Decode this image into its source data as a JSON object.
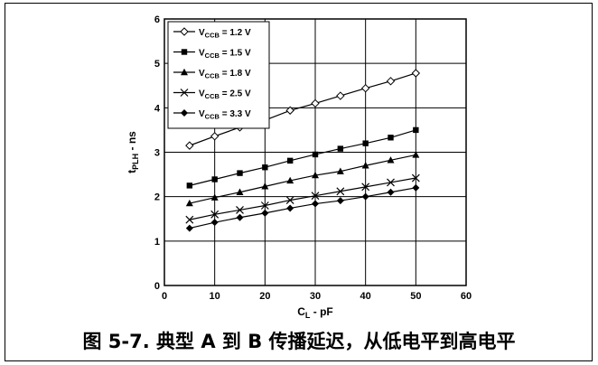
{
  "figure": {
    "caption": "图 5-7. 典型 A 到 B 传播延迟，从低电平到高电平"
  },
  "chart_data": {
    "type": "line",
    "xlabel_main": "C",
    "xlabel_sub": "L",
    "xlabel_rest": " - pF",
    "ylabel_main": "t",
    "ylabel_sub": "PLH",
    "ylabel_rest": " - ns",
    "xlim": [
      0,
      60
    ],
    "ylim": [
      0,
      6
    ],
    "xticks": [
      0,
      10,
      20,
      30,
      40,
      50,
      60
    ],
    "yticks": [
      0,
      1,
      2,
      3,
      4,
      5,
      6
    ],
    "grid": true,
    "legend_position": "top-left",
    "x": [
      5,
      10,
      15,
      20,
      25,
      30,
      35,
      40,
      45,
      50
    ],
    "series": [
      {
        "name": "V",
        "name_sub": "CCB",
        "name_rest": " = 1.2 V",
        "marker": "diamond-open",
        "values": [
          3.15,
          3.36,
          3.56,
          3.72,
          3.94,
          4.1,
          4.27,
          4.44,
          4.6,
          4.78
        ]
      },
      {
        "name": "V",
        "name_sub": "CCB",
        "name_rest": " = 1.5 V",
        "marker": "square",
        "values": [
          2.25,
          2.39,
          2.53,
          2.66,
          2.81,
          2.95,
          3.08,
          3.2,
          3.33,
          3.5
        ]
      },
      {
        "name": "V",
        "name_sub": "CCB",
        "name_rest": " = 1.8 V",
        "marker": "triangle",
        "values": [
          1.85,
          1.98,
          2.1,
          2.23,
          2.36,
          2.48,
          2.57,
          2.7,
          2.82,
          2.94
        ]
      },
      {
        "name": "V",
        "name_sub": "CCB",
        "name_rest": " = 2.5 V",
        "marker": "x",
        "values": [
          1.48,
          1.6,
          1.7,
          1.8,
          1.92,
          2.02,
          2.12,
          2.22,
          2.32,
          2.42
        ]
      },
      {
        "name": "V",
        "name_sub": "CCB",
        "name_rest": " = 3.3 V",
        "marker": "diamond",
        "values": [
          1.29,
          1.42,
          1.53,
          1.63,
          1.74,
          1.84,
          1.91,
          2.0,
          2.1,
          2.2
        ]
      }
    ]
  }
}
